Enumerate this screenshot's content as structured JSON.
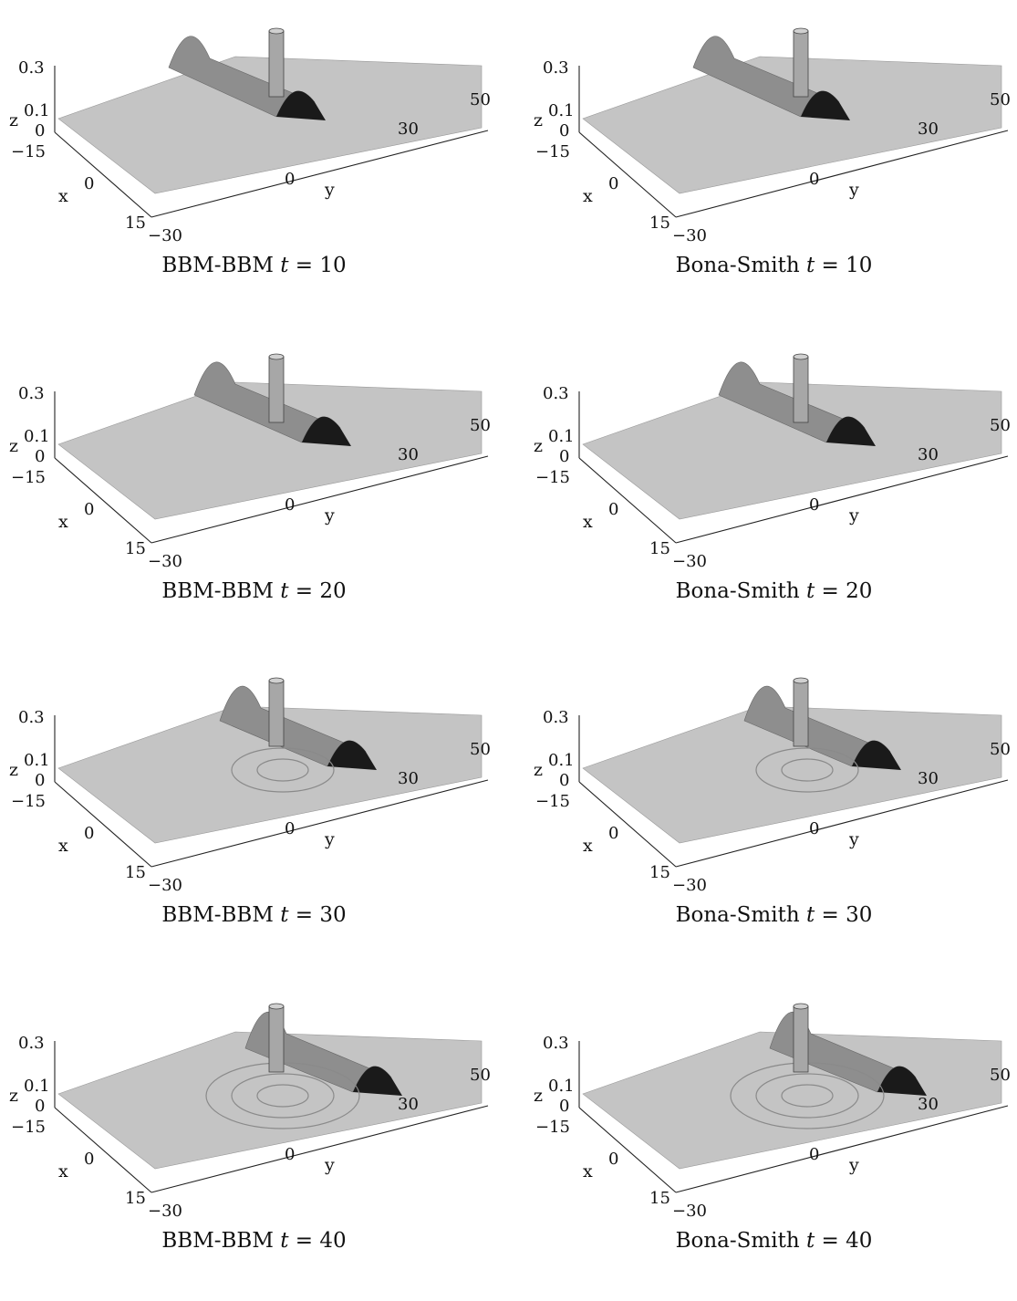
{
  "figure": {
    "panels": [
      {
        "model": "BBM-BBM",
        "t_symbol": "t",
        "eq": "=",
        "t_value": "10",
        "stage": 0
      },
      {
        "model": "Bona-Smith",
        "t_symbol": "t",
        "eq": "=",
        "t_value": "10",
        "stage": 0
      },
      {
        "model": "BBM-BBM",
        "t_symbol": "t",
        "eq": "=",
        "t_value": "20",
        "stage": 1
      },
      {
        "model": "Bona-Smith",
        "t_symbol": "t",
        "eq": "=",
        "t_value": "20",
        "stage": 1
      },
      {
        "model": "BBM-BBM",
        "t_symbol": "t",
        "eq": "=",
        "t_value": "30",
        "stage": 2
      },
      {
        "model": "Bona-Smith",
        "t_symbol": "t",
        "eq": "=",
        "t_value": "30",
        "stage": 2
      },
      {
        "model": "BBM-BBM",
        "t_symbol": "t",
        "eq": "=",
        "t_value": "40",
        "stage": 3
      },
      {
        "model": "Bona-Smith",
        "t_symbol": "t",
        "eq": "=",
        "t_value": "40",
        "stage": 3
      }
    ],
    "axes": {
      "z_label": "z",
      "z_ticks": [
        "0.3",
        "0.1",
        "0"
      ],
      "x_label": "x",
      "x_ticks": [
        "−15",
        "0",
        "15"
      ],
      "y_label": "y",
      "y_ticks": [
        "−30",
        "0",
        "30",
        "50"
      ]
    },
    "colors": {
      "surface": "#c4c4c4",
      "surface_dark": "#8e8e8e",
      "shadow": "#1a1a1a",
      "axis": "#222222"
    }
  }
}
